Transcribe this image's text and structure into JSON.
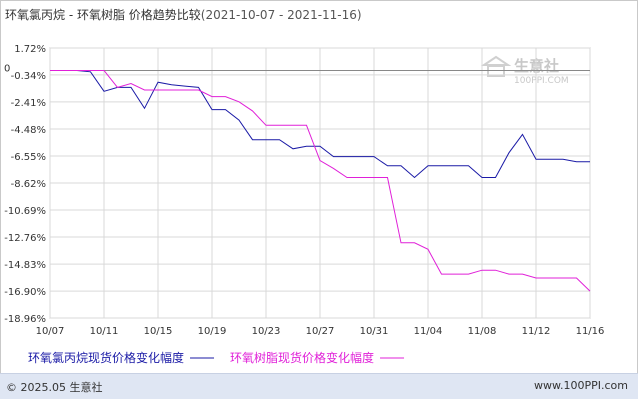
{
  "title": {
    "main": "环氧氯丙烷 - 环氧树脂 价格趋势比较",
    "range": "(2021-10-07 - 2021-11-16)"
  },
  "watermark": {
    "name": "生意社",
    "url": "100PPI.COM"
  },
  "footer": {
    "copyright": "© 2025.05 生意社",
    "site": "www.100PPI.com"
  },
  "colors": {
    "series1": "#1a1aa6",
    "series2": "#e020d8",
    "grid": "#d9d9d9",
    "zero_line": "#888888",
    "watermark": "#c8c8c8"
  },
  "chart_data": {
    "type": "line",
    "zero_label": "0",
    "x": [
      "10/07",
      "10/08",
      "10/09",
      "10/10",
      "10/11",
      "10/12",
      "10/13",
      "10/14",
      "10/15",
      "10/16",
      "10/17",
      "10/18",
      "10/19",
      "10/20",
      "10/21",
      "10/22",
      "10/23",
      "10/24",
      "10/25",
      "10/26",
      "10/27",
      "10/28",
      "10/29",
      "10/30",
      "10/31",
      "11/01",
      "11/02",
      "11/03",
      "11/04",
      "11/05",
      "11/06",
      "11/07",
      "11/08",
      "11/09",
      "11/10",
      "11/11",
      "11/12",
      "11/13",
      "11/14",
      "11/15",
      "11/16"
    ],
    "x_tick_labels": [
      "10/07",
      "10/11",
      "10/15",
      "10/19",
      "10/23",
      "10/27",
      "10/31",
      "11/04",
      "11/08",
      "11/12",
      "11/16"
    ],
    "y_tick_labels": [
      "1.72%",
      "-0.34%",
      "-2.41%",
      "-4.48%",
      "-6.55%",
      "-8.62%",
      "-10.69%",
      "-12.76%",
      "-14.83%",
      "-16.90%",
      "-18.96%"
    ],
    "y_ticks": [
      1.72,
      -0.34,
      -2.41,
      -4.48,
      -6.55,
      -8.62,
      -10.69,
      -12.76,
      -14.83,
      -16.9,
      -18.96
    ],
    "ylim": [
      -18.96,
      1.72
    ],
    "grid": true,
    "legend_position": "bottom",
    "series": [
      {
        "name": "环氧氯丙烷现货价格变化幅度",
        "values": [
          0,
          0,
          0,
          -0.1,
          -1.6,
          -1.3,
          -1.3,
          -2.9,
          -0.9,
          -1.1,
          -1.2,
          -1.3,
          -3.0,
          -3.0,
          -3.8,
          -5.3,
          -5.3,
          -5.3,
          -6.0,
          -5.8,
          -5.8,
          -6.6,
          -6.6,
          -6.6,
          -6.6,
          -7.3,
          -7.3,
          -8.2,
          -7.3,
          -7.3,
          -7.3,
          -7.3,
          -8.2,
          -8.2,
          -6.3,
          -4.9,
          -6.8,
          -6.8,
          -6.8,
          -7.0,
          -7.0
        ]
      },
      {
        "name": "环氧树脂现货价格变化幅度",
        "values": [
          0,
          0,
          0,
          0,
          0,
          -1.3,
          -1.0,
          -1.5,
          -1.5,
          -1.5,
          -1.5,
          -1.5,
          -2.0,
          -2.0,
          -2.4,
          -3.1,
          -4.2,
          -4.2,
          -4.2,
          -4.2,
          -6.9,
          -7.5,
          -8.2,
          -8.2,
          -8.2,
          -8.2,
          -13.2,
          -13.2,
          -13.7,
          -15.6,
          -15.6,
          -15.6,
          -15.3,
          -15.3,
          -15.6,
          -15.6,
          -15.9,
          -15.9,
          -15.9,
          -15.9,
          -16.9
        ]
      }
    ]
  }
}
